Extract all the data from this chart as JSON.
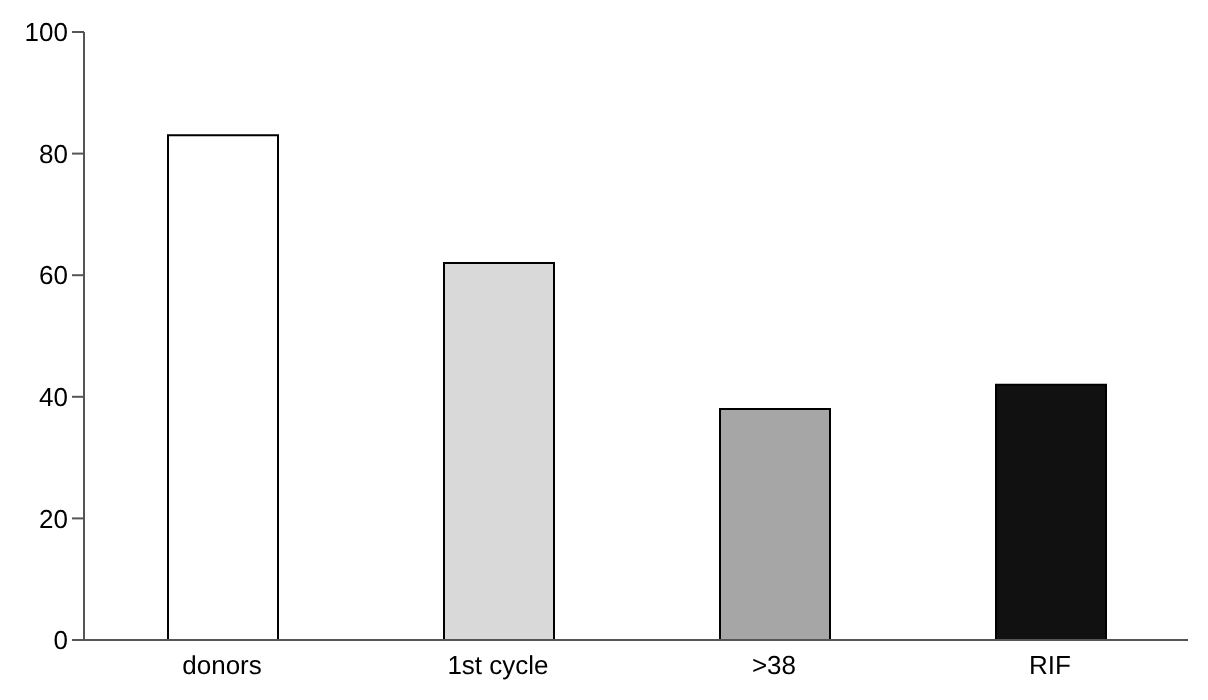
{
  "chart_data": {
    "type": "bar",
    "categories": [
      "donors",
      "1st cycle",
      ">38",
      "RIF"
    ],
    "values": [
      83,
      62,
      38,
      42
    ],
    "colors": [
      "#ffffff",
      "#d9d9d9",
      "#a6a6a6",
      "#111111"
    ],
    "ylim": [
      0,
      100
    ],
    "yticks": [
      0,
      20,
      40,
      60,
      80,
      100
    ],
    "grid": false,
    "legend": false
  }
}
